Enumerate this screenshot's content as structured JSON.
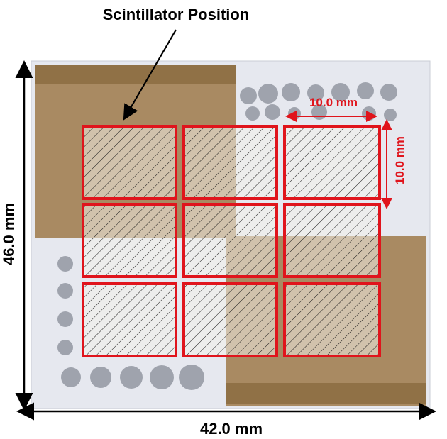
{
  "title": "Scintillator Position",
  "dims": {
    "width_label": "42.0 mm",
    "height_label": "46.0 mm",
    "cell_width_label": "10.0 mm",
    "cell_height_label": "10.0 mm"
  },
  "grid": {
    "rows": 3,
    "cols": 3
  },
  "colors": {
    "scintillator_outline": "#e0141c",
    "hatch": "#1a1a1a",
    "board": "#e6e8ef",
    "copper": "#a98a62",
    "pad": "#9fa3ad",
    "annotation": "#e0141c",
    "text": "#000000"
  }
}
